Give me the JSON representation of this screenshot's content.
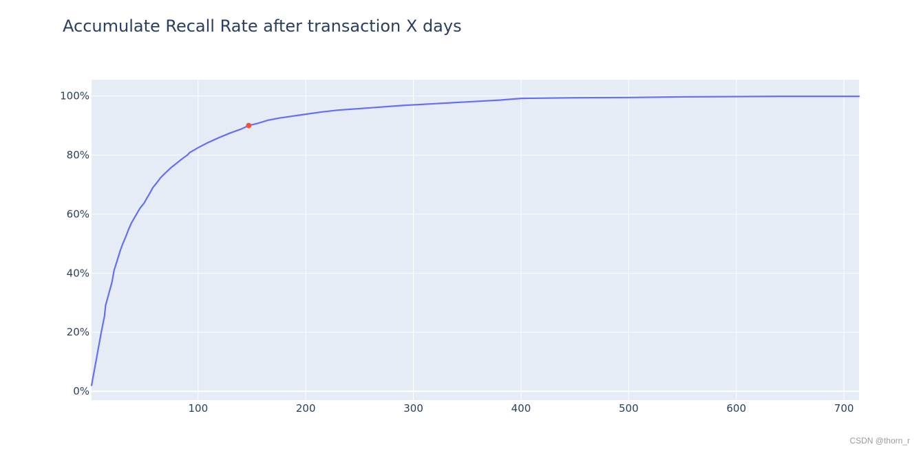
{
  "chart_data": {
    "type": "line",
    "title": "Accumulate Recall Rate after transaction X days",
    "xlabel": "",
    "ylabel": "",
    "xlim": [
      1,
      714
    ],
    "ylim": [
      -0.03,
      1.055
    ],
    "x_ticks": [
      100,
      200,
      300,
      400,
      500,
      600,
      700
    ],
    "x_tick_labels": [
      "100",
      "200",
      "300",
      "400",
      "500",
      "600",
      "700"
    ],
    "y_ticks": [
      0,
      0.2,
      0.4,
      0.6,
      0.8,
      1.0
    ],
    "y_tick_labels": [
      "0%",
      "20%",
      "40%",
      "60%",
      "80%",
      "100%"
    ],
    "grid": true,
    "series": [
      {
        "color": "#636efa",
        "x": [
          1,
          5,
          10,
          13,
          14,
          17,
          20,
          22,
          25,
          28,
          30,
          33,
          35,
          38,
          42,
          46,
          50,
          52,
          55,
          58,
          62,
          65,
          70,
          75,
          80,
          85,
          90,
          92,
          100,
          108,
          115,
          120,
          130,
          140,
          147,
          155,
          165,
          175,
          190,
          205,
          215,
          230,
          260,
          290,
          320,
          350,
          380,
          400,
          450,
          500,
          550,
          600,
          640,
          680,
          714
        ],
        "y": [
          0.02,
          0.1,
          0.2,
          0.255,
          0.29,
          0.33,
          0.37,
          0.41,
          0.445,
          0.48,
          0.5,
          0.525,
          0.545,
          0.57,
          0.595,
          0.62,
          0.638,
          0.652,
          0.67,
          0.69,
          0.708,
          0.723,
          0.741,
          0.758,
          0.772,
          0.787,
          0.8,
          0.808,
          0.825,
          0.84,
          0.852,
          0.86,
          0.875,
          0.888,
          0.9,
          0.907,
          0.918,
          0.925,
          0.933,
          0.941,
          0.946,
          0.952,
          0.96,
          0.968,
          0.974,
          0.98,
          0.986,
          0.992,
          0.994,
          0.995,
          0.997,
          0.998,
          0.999,
          0.999,
          0.999
        ]
      },
      {
        "color": "#ef553b",
        "mode": "markers",
        "x": [
          147
        ],
        "y": [
          0.9
        ]
      }
    ],
    "watermark": "CSDN @thorn_r"
  },
  "colors": {
    "plot_bg": "#e5ecf6",
    "grid": "#ffffff",
    "text": "#2a3f5f"
  }
}
